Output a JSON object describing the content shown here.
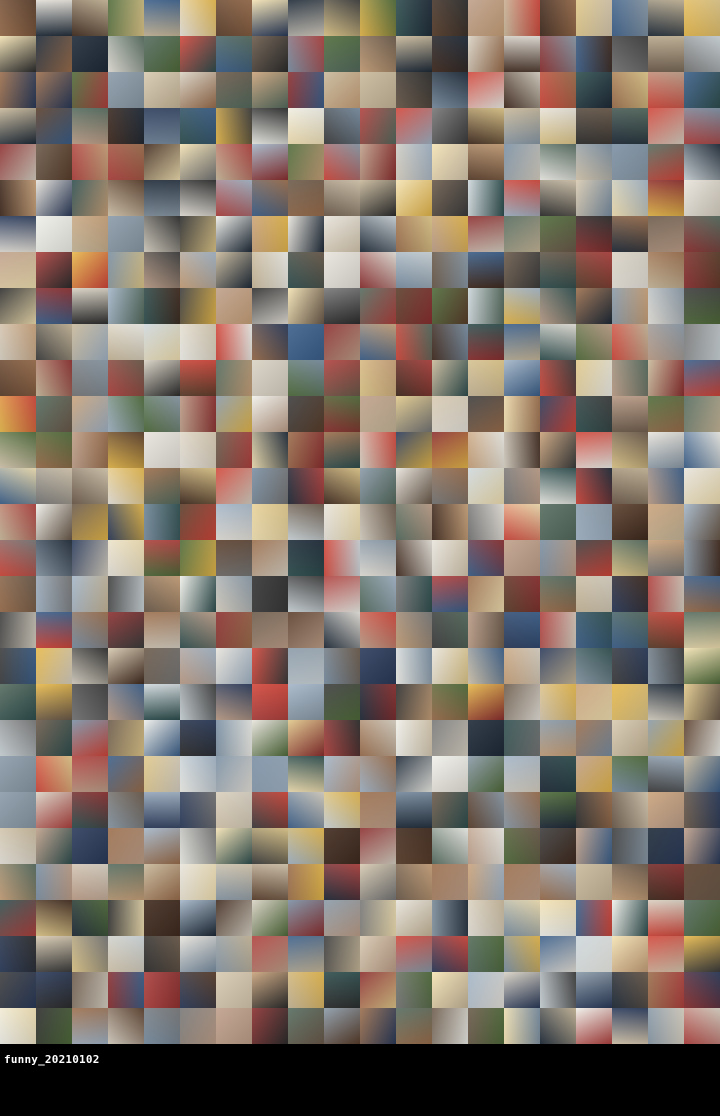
{
  "caption": "funny_20210102",
  "grid": {
    "columns": 20,
    "rows": 29
  },
  "palette": [
    "#6b5a4a",
    "#2a3a5a",
    "#c8b89a",
    "#d9d2c4",
    "#8a9aa8",
    "#3d3d3d",
    "#b0413e",
    "#e8e4dc",
    "#4f6b3a",
    "#2d2d2d",
    "#c9a27a",
    "#7a8fa3",
    "#e0c88a",
    "#1e2a38",
    "#9b6e4c",
    "#f0f0ea",
    "#5a3e2b",
    "#a3b5c7",
    "#d7c9b0",
    "#3b5f8a",
    "#e6b84a",
    "#8c2f2f",
    "#556b5e",
    "#bfa08a",
    "#777777",
    "#cfd8dc",
    "#402a1e",
    "#d1463a",
    "#f3e2b3",
    "#2f4f4f"
  ]
}
